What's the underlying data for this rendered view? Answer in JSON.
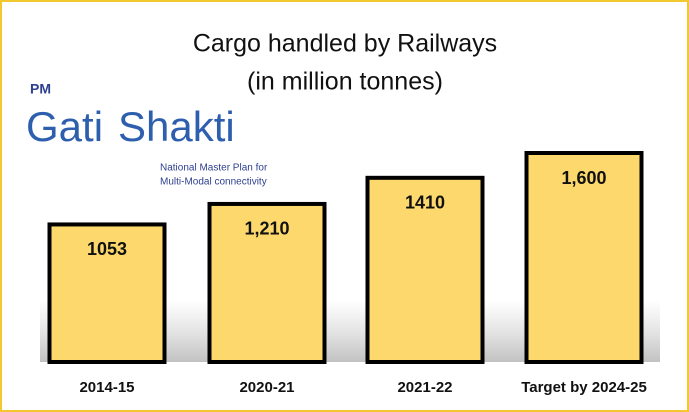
{
  "chart_data": {
    "type": "bar",
    "title": [
      "Cargo handled by Railways",
      "(in million tonnes)"
    ],
    "logo": {
      "prefix": "PM",
      "name": [
        "Gati",
        "Shakti"
      ],
      "tagline": [
        "National Master Plan for",
        "Multi-Modal connectivity"
      ]
    },
    "categories": [
      "2014-15",
      "2020-21",
      "2021-22",
      "Target by 2024-25"
    ],
    "values": [
      1053,
      1210,
      1410,
      1600
    ],
    "value_labels": [
      "1053",
      "1,210",
      "1410",
      "1,600"
    ],
    "color": "#fdd96d"
  }
}
